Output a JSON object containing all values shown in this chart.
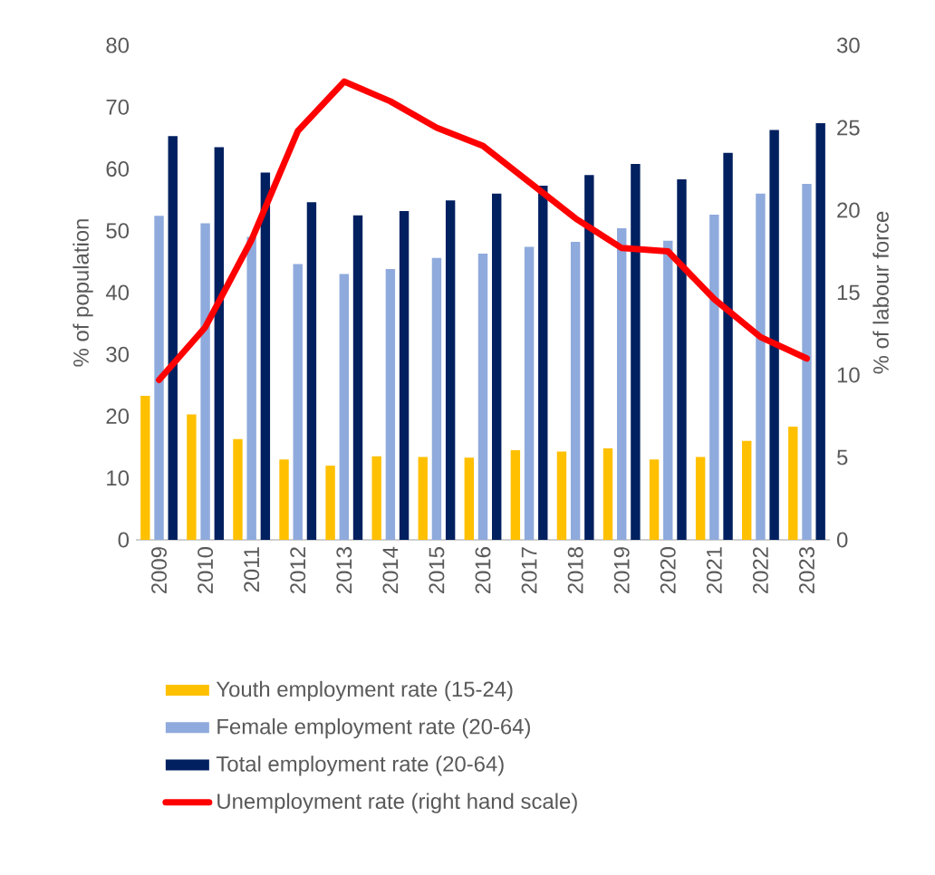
{
  "chart_data": {
    "type": "bar",
    "ylabel": "% of population",
    "y2label": "% of labour force",
    "categories": [
      "2009",
      "2010",
      "2011",
      "2012",
      "2013",
      "2014",
      "2015",
      "2016",
      "2017",
      "2018",
      "2019",
      "2020",
      "2021",
      "2022",
      "2023"
    ],
    "series": [
      {
        "name": "Youth employment rate (15-24)",
        "color": "#ffc000",
        "values": [
          23.3,
          20.3,
          16.3,
          13,
          12,
          13.5,
          13.4,
          13.3,
          14.5,
          14.3,
          14.8,
          13,
          13.4,
          16,
          18.3
        ]
      },
      {
        "name": "Female employment rate (20-64)",
        "color": "#8faadc",
        "values": [
          52.4,
          51.2,
          49,
          44.6,
          43,
          43.8,
          45.6,
          46.3,
          47.4,
          48.2,
          50.4,
          48.4,
          52.6,
          56,
          57.6
        ]
      },
      {
        "name": "Total employment rate (20-64)",
        "color": "#002060",
        "values": [
          65.3,
          63.5,
          59.4,
          54.6,
          52.5,
          53.2,
          54.9,
          56,
          57.3,
          59,
          60.8,
          58.3,
          62.6,
          66.3,
          67.4
        ]
      },
      {
        "name": "Unemployment rate (right hand scale)",
        "color": "#ff0000",
        "type": "line",
        "axis": "y2",
        "values": [
          9.7,
          12.9,
          18.2,
          24.8,
          27.8,
          26.6,
          25,
          23.9,
          21.7,
          19.5,
          17.7,
          17.5,
          14.6,
          12.3,
          11.0
        ]
      }
    ],
    "ylim": [
      0,
      80
    ],
    "yticks": [
      0,
      10,
      20,
      30,
      40,
      50,
      60,
      70,
      80
    ],
    "y2lim": [
      0,
      30
    ],
    "y2ticks": [
      0,
      5,
      10,
      15,
      20,
      25,
      30
    ],
    "legend": "bottom"
  }
}
